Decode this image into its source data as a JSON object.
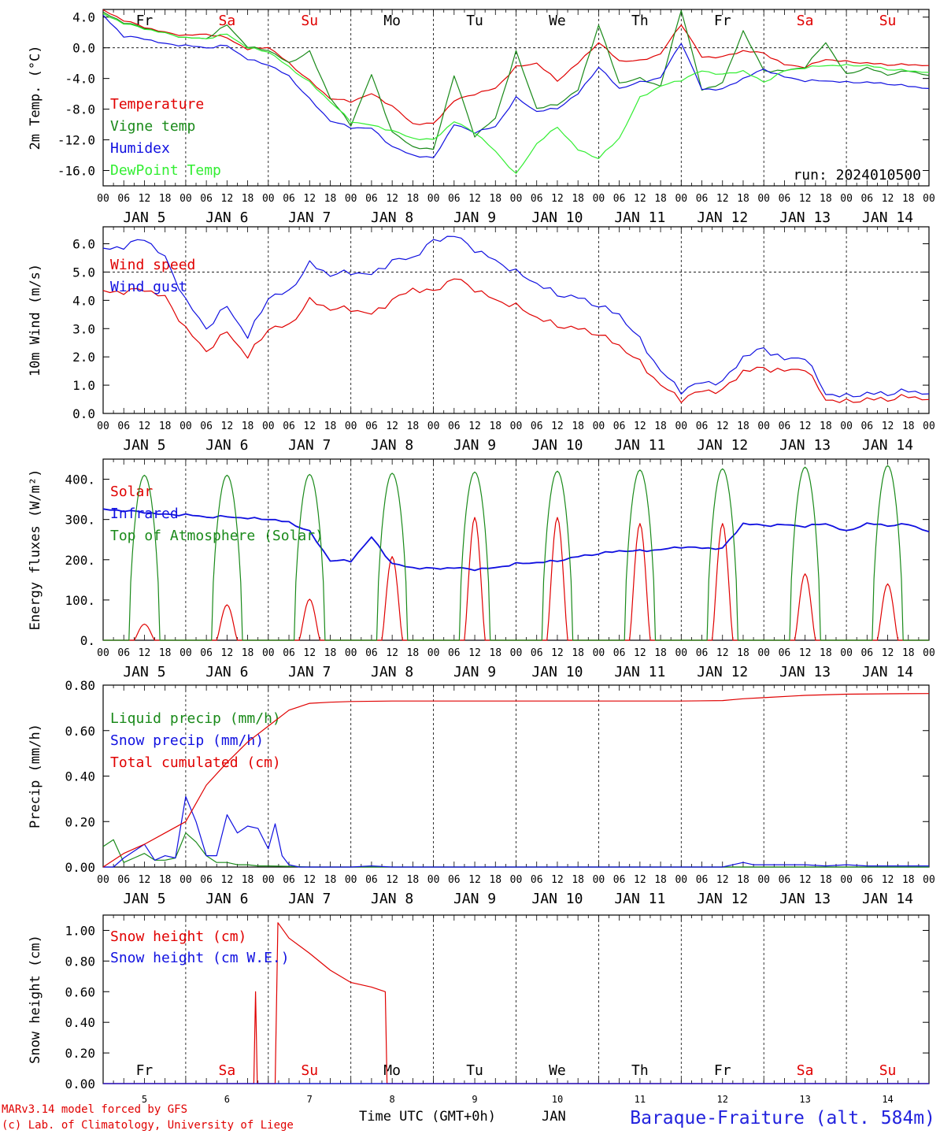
{
  "run_label": "run: 2024010500",
  "xlabel": "Time UTC (GMT+0h)",
  "month_label": "JAN",
  "station_title": "Baraque-Fraiture (alt. 584m)",
  "credits": [
    "MARv3.14 model forced by GFS",
    "(c) Lab. of Climatology, University of Liege"
  ],
  "hour_ticks": [
    "00",
    "06",
    "12",
    "18"
  ],
  "date_labels": [
    "JAN 5",
    "JAN 6",
    "JAN 7",
    "JAN 8",
    "JAN 9",
    "JAN 10",
    "JAN 11",
    "JAN 12",
    "JAN 13",
    "JAN 14"
  ],
  "snow_axis_days": [
    "5",
    "6",
    "7",
    "8",
    "9",
    "10",
    "11",
    "12",
    "13",
    "14"
  ],
  "weekdays": [
    {
      "label": "Fr",
      "color": "#000000"
    },
    {
      "label": "Sa",
      "color": "#e00000"
    },
    {
      "label": "Su",
      "color": "#e00000"
    },
    {
      "label": "Mo",
      "color": "#000000"
    },
    {
      "label": "Tu",
      "color": "#000000"
    },
    {
      "label": "We",
      "color": "#000000"
    },
    {
      "label": "Th",
      "color": "#000000"
    },
    {
      "label": "Fr",
      "color": "#000000"
    },
    {
      "label": "Sa",
      "color": "#e00000"
    },
    {
      "label": "Su",
      "color": "#e00000"
    }
  ],
  "colors": {
    "red": "#e00000",
    "green": "#1a8a1a",
    "blue": "#1010e0",
    "lightgreen": "#33ee33",
    "title_blue": "#2222dd"
  },
  "chart_data": [
    {
      "type": "line",
      "ylabel": "2m Temp. (°C)",
      "ylim": [
        -18,
        5
      ],
      "yticks": [
        4,
        0,
        -4,
        -8,
        -12,
        -16
      ],
      "ytick_labels": [
        "4.0",
        "0.0",
        "-4.0",
        "-8.0",
        "-12.0",
        "-16.0"
      ],
      "ref_line": 0,
      "x_unit": "hours since Jan 5 00 UTC",
      "series": [
        {
          "name": "Temperature",
          "color": "#e00000",
          "x": [
            0,
            6,
            12,
            18,
            24,
            30,
            36,
            42,
            48,
            54,
            60,
            66,
            72,
            78,
            84,
            90,
            96,
            102,
            108,
            114,
            120,
            126,
            132,
            138,
            144,
            150,
            156,
            162,
            168,
            174,
            180,
            186,
            192,
            198,
            204,
            210,
            216,
            222,
            228,
            234,
            240
          ],
          "y": [
            4.9,
            3.6,
            2.7,
            2.0,
            1.6,
            1.8,
            1.3,
            -0.2,
            0.1,
            -2.0,
            -4.3,
            -6.6,
            -7.0,
            -6.0,
            -7.6,
            -9.9,
            -9.9,
            -6.9,
            -6.0,
            -5.3,
            -2.5,
            -2.0,
            -4.3,
            -2.0,
            0.7,
            -1.7,
            -1.7,
            -0.8,
            3.1,
            -1.2,
            -1.2,
            -0.4,
            -0.7,
            -2.2,
            -2.5,
            -1.5,
            -1.8,
            -2.0,
            -2.2,
            -2.2,
            -2.3
          ]
        },
        {
          "name": "Vigne temp",
          "color": "#1a8a1a",
          "x": [
            0,
            6,
            12,
            18,
            24,
            30,
            36,
            42,
            48,
            54,
            60,
            66,
            72,
            78,
            84,
            90,
            96,
            102,
            108,
            114,
            120,
            126,
            132,
            138,
            144,
            150,
            156,
            162,
            168,
            174,
            180,
            186,
            192,
            198,
            204,
            210,
            216,
            222,
            228,
            234,
            240
          ],
          "y": [
            4.6,
            3.3,
            2.6,
            1.9,
            1.3,
            1.2,
            3.0,
            0.1,
            -0.3,
            -2.0,
            -0.5,
            -6.5,
            -10.1,
            -3.5,
            -11.0,
            -12.9,
            -13.3,
            -3.6,
            -11.5,
            -9.2,
            -0.5,
            -7.9,
            -7.4,
            -5.5,
            3.0,
            -4.6,
            -4.0,
            -5.0,
            5.0,
            -5.5,
            -4.6,
            2.2,
            -3.0,
            -3.0,
            -2.5,
            0.7,
            -3.5,
            -2.6,
            -3.5,
            -3.0,
            -3.6
          ]
        },
        {
          "name": "Humidex",
          "color": "#1010e0",
          "x": [
            0,
            6,
            12,
            18,
            24,
            30,
            36,
            42,
            48,
            54,
            60,
            66,
            72,
            78,
            84,
            90,
            96,
            102,
            108,
            114,
            120,
            126,
            132,
            138,
            144,
            150,
            156,
            162,
            168,
            174,
            180,
            186,
            192,
            198,
            204,
            210,
            216,
            222,
            228,
            234,
            240
          ],
          "y": [
            4.2,
            1.5,
            1.2,
            0.5,
            0.3,
            0.0,
            0.3,
            -1.5,
            -2.2,
            -3.7,
            -6.7,
            -9.5,
            -10.4,
            -10.5,
            -12.9,
            -14.0,
            -14.4,
            -10.0,
            -11.0,
            -10.3,
            -6.5,
            -8.3,
            -7.9,
            -6.0,
            -2.5,
            -5.3,
            -4.5,
            -3.9,
            0.7,
            -5.4,
            -5.4,
            -4.0,
            -2.8,
            -3.8,
            -4.3,
            -4.3,
            -4.5,
            -4.5,
            -4.7,
            -5.0,
            -5.3
          ]
        },
        {
          "name": "DewPoint Temp",
          "color": "#33ee33",
          "x": [
            0,
            6,
            12,
            18,
            24,
            30,
            36,
            42,
            48,
            54,
            60,
            66,
            72,
            78,
            84,
            90,
            96,
            102,
            108,
            114,
            120,
            126,
            132,
            138,
            144,
            150,
            156,
            162,
            168,
            174,
            180,
            186,
            192,
            198,
            204,
            210,
            216,
            222,
            228,
            234,
            240
          ],
          "y": [
            4.4,
            3.2,
            2.5,
            1.9,
            1.3,
            1.2,
            1.8,
            0.0,
            -0.5,
            -2.5,
            -4.5,
            -7.0,
            -9.6,
            -10.1,
            -10.8,
            -11.8,
            -12.0,
            -9.6,
            -11.0,
            -13.5,
            -16.5,
            -12.5,
            -10.3,
            -13.3,
            -14.4,
            -11.8,
            -6.5,
            -5.0,
            -4.2,
            -3.0,
            -3.5,
            -3.0,
            -4.5,
            -3.0,
            -2.6,
            -2.3,
            -2.3,
            -2.3,
            -2.8,
            -3.0,
            -3.2
          ]
        }
      ]
    },
    {
      "type": "line",
      "ylabel": "10m Wind (m/s)",
      "ylim": [
        0,
        6.6
      ],
      "yticks": [
        0,
        1,
        2,
        3,
        4,
        5,
        6
      ],
      "ytick_labels": [
        "0.0",
        "1.0",
        "2.0",
        "3.0",
        "4.0",
        "5.0",
        "6.0"
      ],
      "ref_line": 5,
      "x_unit": "hours since Jan 5 00 UTC",
      "series": [
        {
          "name": "Wind speed",
          "color": "#e00000",
          "x": [
            0,
            6,
            12,
            18,
            24,
            30,
            36,
            42,
            48,
            54,
            60,
            66,
            72,
            78,
            84,
            90,
            96,
            102,
            108,
            114,
            120,
            126,
            132,
            138,
            144,
            150,
            156,
            162,
            168,
            174,
            180,
            186,
            192,
            198,
            204,
            210,
            216,
            222,
            228,
            234,
            240
          ],
          "y": [
            4.3,
            4.3,
            4.4,
            4.1,
            3.0,
            2.2,
            2.9,
            2.0,
            3.0,
            3.1,
            4.0,
            3.7,
            3.7,
            3.5,
            4.0,
            4.4,
            4.3,
            4.8,
            4.4,
            4.0,
            3.8,
            3.4,
            3.1,
            3.0,
            2.8,
            2.4,
            1.8,
            1.0,
            0.5,
            0.8,
            0.8,
            1.5,
            1.6,
            1.5,
            1.6,
            0.5,
            0.4,
            0.5,
            0.5,
            0.6,
            0.5
          ]
        },
        {
          "name": "Wind gust",
          "color": "#1010e0",
          "x": [
            0,
            6,
            12,
            18,
            24,
            30,
            36,
            42,
            48,
            54,
            60,
            66,
            72,
            78,
            84,
            90,
            96,
            102,
            108,
            114,
            120,
            126,
            132,
            138,
            144,
            150,
            156,
            162,
            168,
            174,
            180,
            186,
            192,
            198,
            204,
            210,
            216,
            222,
            228,
            234,
            240
          ],
          "y": [
            5.8,
            5.9,
            6.2,
            5.5,
            4.0,
            3.0,
            3.8,
            2.7,
            4.1,
            4.3,
            5.3,
            4.9,
            5.0,
            4.9,
            5.4,
            5.5,
            6.1,
            6.3,
            5.8,
            5.4,
            5.0,
            4.6,
            4.2,
            4.1,
            3.8,
            3.5,
            2.6,
            1.5,
            0.8,
            1.1,
            1.1,
            2.0,
            2.3,
            1.9,
            2.0,
            0.7,
            0.6,
            0.7,
            0.7,
            0.8,
            0.7
          ]
        }
      ]
    },
    {
      "type": "line",
      "ylabel": "Energy fluxes (W/m²)",
      "ylim": [
        0,
        450
      ],
      "yticks": [
        0,
        100,
        200,
        300,
        400
      ],
      "ytick_labels": [
        "0.",
        "100.",
        "200.",
        "300.",
        "400."
      ],
      "x_unit": "hours since Jan 5 00 UTC",
      "peaks": {
        "toa_rise_hour": 7.5,
        "toa_set_hour": 16.5,
        "solar_rise_hour": 9,
        "solar_set_hour": 15,
        "toa_peak": [
          410,
          410,
          412,
          415,
          418,
          420,
          423,
          426,
          430,
          434
        ],
        "solar_peak": [
          40,
          88,
          102,
          208,
          305,
          305,
          290,
          290,
          165,
          140
        ]
      },
      "series": [
        {
          "name": "Solar",
          "color": "#e00000"
        },
        {
          "name": "Infrared",
          "color": "#1010e0",
          "x": [
            0,
            6,
            12,
            18,
            24,
            30,
            36,
            42,
            48,
            54,
            60,
            66,
            72,
            78,
            84,
            90,
            96,
            102,
            108,
            114,
            120,
            126,
            132,
            138,
            144,
            150,
            156,
            162,
            168,
            174,
            180,
            186,
            192,
            198,
            204,
            210,
            216,
            222,
            228,
            234,
            240
          ],
          "y": [
            325,
            322,
            318,
            312,
            312,
            306,
            307,
            303,
            301,
            293,
            270,
            198,
            197,
            256,
            190,
            180,
            178,
            180,
            176,
            180,
            190,
            193,
            197,
            208,
            215,
            222,
            222,
            225,
            232,
            229,
            228,
            290,
            285,
            287,
            283,
            290,
            270,
            290,
            285,
            288,
            270
          ]
        },
        {
          "name": "Top of Atmosphere (Solar)",
          "color": "#1a8a1a"
        }
      ]
    },
    {
      "type": "line",
      "ylabel": "Precip (mm/h)",
      "ylim": [
        0,
        0.8
      ],
      "yticks": [
        0,
        0.2,
        0.4,
        0.6,
        0.8
      ],
      "ytick_labels": [
        "0.00",
        "0.20",
        "0.40",
        "0.60",
        "0.80"
      ],
      "x_unit": "hours since Jan 5 00 UTC",
      "series": [
        {
          "name": "Liquid precip (mm/h)",
          "color": "#1a8a1a",
          "x": [
            0,
            3,
            6,
            9,
            12,
            15,
            18,
            21,
            24,
            27,
            30,
            33,
            36,
            39,
            42,
            45,
            48,
            54,
            60,
            66,
            72,
            240
          ],
          "y": [
            0.09,
            0.12,
            0.02,
            0.04,
            0.06,
            0.03,
            0.03,
            0.04,
            0.15,
            0.11,
            0.05,
            0.02,
            0.02,
            0.01,
            0.01,
            0.005,
            0.005,
            0.003,
            0.0,
            0.0,
            0.0,
            0.0
          ]
        },
        {
          "name": "Snow precip (mm/h)",
          "color": "#1010e0",
          "x": [
            0,
            3,
            6,
            9,
            12,
            15,
            18,
            21,
            24,
            27,
            30,
            33,
            36,
            39,
            42,
            45,
            48,
            50,
            52,
            54,
            57,
            60,
            66,
            72,
            78,
            84,
            180,
            183,
            186,
            189,
            192,
            198,
            204,
            210,
            216,
            222,
            228,
            234,
            240
          ],
          "y": [
            0.0,
            0.0,
            0.04,
            0.07,
            0.1,
            0.03,
            0.05,
            0.04,
            0.31,
            0.2,
            0.05,
            0.05,
            0.23,
            0.15,
            0.18,
            0.17,
            0.08,
            0.19,
            0.05,
            0.01,
            0.0,
            0.0,
            0.0,
            0.0,
            0.005,
            0.0,
            0.0,
            0.01,
            0.02,
            0.01,
            0.01,
            0.01,
            0.01,
            0.005,
            0.01,
            0.005,
            0.005,
            0.005,
            0.005
          ]
        },
        {
          "name": "Total cumulated (cm)",
          "color": "#e00000",
          "x": [
            0,
            6,
            12,
            18,
            24,
            30,
            36,
            42,
            48,
            54,
            60,
            66,
            72,
            84,
            96,
            120,
            144,
            168,
            180,
            186,
            192,
            204,
            216,
            228,
            240
          ],
          "y": [
            0.0,
            0.06,
            0.1,
            0.15,
            0.2,
            0.36,
            0.46,
            0.55,
            0.62,
            0.69,
            0.72,
            0.725,
            0.728,
            0.73,
            0.73,
            0.73,
            0.73,
            0.73,
            0.732,
            0.74,
            0.745,
            0.755,
            0.76,
            0.762,
            0.763
          ]
        }
      ]
    },
    {
      "type": "line",
      "ylabel": "Snow height (cm)",
      "ylim": [
        0,
        1.1
      ],
      "yticks": [
        0,
        0.2,
        0.4,
        0.6,
        0.8,
        1.0
      ],
      "ytick_labels": [
        "0.00",
        "0.20",
        "0.40",
        "0.60",
        "0.80",
        "1.00"
      ],
      "x_unit": "hours since Jan 5 00 UTC",
      "series": [
        {
          "name": "Snow height (cm)",
          "color": "#e00000",
          "x": [
            0,
            43,
            43.8,
            44.3,
            44.8,
            50,
            50.8,
            54,
            60,
            66,
            72,
            78,
            82,
            82.5,
            240
          ],
          "y": [
            0,
            0,
            0,
            0.6,
            0,
            0,
            1.05,
            0.95,
            0.85,
            0.74,
            0.66,
            0.63,
            0.6,
            0,
            0
          ]
        },
        {
          "name": "Snow height (cm W.E.)",
          "color": "#1010e0",
          "x": [
            0,
            240
          ],
          "y": [
            0,
            0
          ]
        }
      ]
    }
  ]
}
